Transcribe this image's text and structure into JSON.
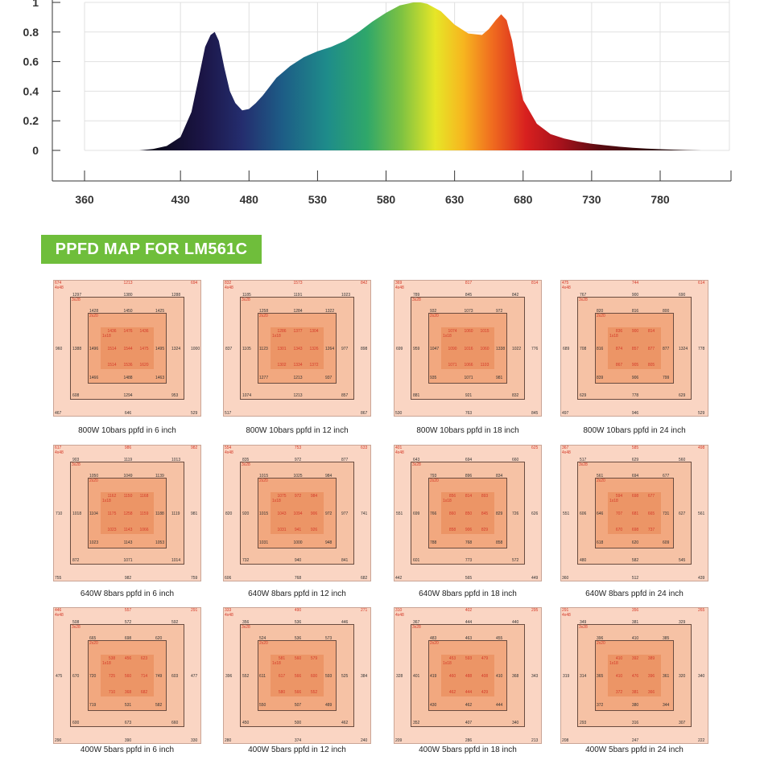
{
  "chart_data": {
    "type": "area",
    "title": "",
    "xlabel": "",
    "ylabel": "",
    "xlim": [
      350,
      815
    ],
    "ylim": [
      0,
      1
    ],
    "x_ticks": [
      360,
      430,
      480,
      530,
      580,
      630,
      680,
      730,
      780
    ],
    "y_ticks": [
      "1",
      "0.8",
      "0.6",
      "0.4",
      "0.2",
      "0"
    ],
    "grid": true,
    "spectrum_fill": "rainbow",
    "x": [
      400,
      410,
      420,
      430,
      438,
      444,
      448,
      452,
      455,
      458,
      462,
      466,
      470,
      475,
      480,
      485,
      490,
      495,
      500,
      510,
      520,
      530,
      540,
      550,
      560,
      570,
      580,
      590,
      600,
      605,
      610,
      620,
      630,
      640,
      650,
      655,
      660,
      664,
      668,
      672,
      676,
      680,
      690,
      700,
      710,
      720,
      730,
      740,
      750,
      760,
      770,
      780,
      790,
      800,
      810
    ],
    "y": [
      0.0,
      0.01,
      0.03,
      0.09,
      0.26,
      0.52,
      0.7,
      0.78,
      0.8,
      0.74,
      0.56,
      0.4,
      0.32,
      0.27,
      0.28,
      0.32,
      0.37,
      0.43,
      0.49,
      0.57,
      0.63,
      0.67,
      0.7,
      0.74,
      0.8,
      0.87,
      0.93,
      0.98,
      1.0,
      1.0,
      0.99,
      0.94,
      0.85,
      0.79,
      0.78,
      0.82,
      0.88,
      0.92,
      0.88,
      0.74,
      0.52,
      0.34,
      0.18,
      0.11,
      0.08,
      0.06,
      0.045,
      0.035,
      0.025,
      0.018,
      0.012,
      0.008,
      0.005,
      0.002,
      0.0
    ]
  },
  "banner": {
    "text": "PPFD MAP FOR LM561C"
  },
  "maps": [
    {
      "caption": "800W 10bars ppfd in 6 inch",
      "corners": [
        "674",
        "1213",
        "694",
        "467",
        "646",
        "529"
      ],
      "mid_corners": [
        "1297",
        "1380",
        "1288",
        "608",
        "1294",
        "953"
      ],
      "inner_corners": [
        "1428",
        "1450",
        "1425",
        "1466",
        "1488",
        "1463"
      ],
      "core": [
        "1436",
        "1476",
        "1436",
        "1514",
        "1544",
        "1475",
        "1514",
        "1536",
        "1620"
      ],
      "left": [
        "960",
        "1388",
        "1496"
      ],
      "right": [
        "1495",
        "1324",
        "1000"
      ],
      "labels": [
        "4x48",
        "3x28",
        "2x20",
        "1x18"
      ]
    },
    {
      "caption": "800W 10bars ppfd in 12 inch",
      "corners": [
        "832",
        "1573",
        "842",
        "517",
        "",
        "867"
      ],
      "mid_corners": [
        "1185",
        "1191",
        "1023",
        "1074",
        "1213",
        "857"
      ],
      "inner_corners": [
        "1258",
        "1284",
        "1322",
        "1277",
        "1213",
        "937"
      ],
      "core": [
        "1286",
        "1377",
        "1304",
        "1301",
        "1343",
        "1326",
        "1302",
        "1334",
        "1372"
      ],
      "left": [
        "837",
        "1105",
        "1123"
      ],
      "right": [
        "1264",
        "977",
        "898"
      ],
      "labels": [
        "4x48",
        "3x28",
        "2x20",
        "1x18"
      ]
    },
    {
      "caption": "800W 10bars ppfd in 18 inch",
      "corners": [
        "369",
        "817",
        "814",
        "530",
        "763",
        "845"
      ],
      "mid_corners": [
        "789",
        "845",
        "842",
        "881",
        "921",
        "832"
      ],
      "inner_corners": [
        "932",
        "1073",
        "972",
        "935",
        "1071",
        "981"
      ],
      "core": [
        "1074",
        "1060",
        "1015",
        "1090",
        "1016",
        "1060",
        "1071",
        "1066",
        "1103"
      ],
      "left": [
        "699",
        "959",
        "1047"
      ],
      "right": [
        "1338",
        "1022",
        "776"
      ],
      "labels": [
        "4x48",
        "3x28",
        "2x20",
        "1x18"
      ]
    },
    {
      "caption": "800W 10bars ppfd in 24 inch",
      "corners": [
        "475",
        "744",
        "614",
        "497",
        "946",
        "529"
      ],
      "mid_corners": [
        "767",
        "900",
        "690",
        "629",
        "778",
        "629"
      ],
      "inner_corners": [
        "820",
        "816",
        "800",
        "839",
        "906",
        "799"
      ],
      "core": [
        "836",
        "900",
        "814",
        "874",
        "857",
        "877",
        "867",
        "905",
        "805"
      ],
      "left": [
        "689",
        "708",
        "816"
      ],
      "right": [
        "877",
        "1324",
        "778"
      ],
      "labels": [
        "4x48",
        "3x28",
        "2x20",
        "1x18"
      ]
    },
    {
      "caption": "640W 8bars ppfd in 6 inch",
      "corners": [
        "617",
        "986",
        "982",
        "755",
        "982",
        "759"
      ],
      "mid_corners": [
        "903",
        "1119",
        "1013",
        "872",
        "1071",
        "1014"
      ],
      "inner_corners": [
        "1050",
        "1049",
        "1139",
        "1023",
        "1143",
        "1053"
      ],
      "core": [
        "1162",
        "1150",
        "1168",
        "1175",
        "1258",
        "1159",
        "1023",
        "1143",
        "1066"
      ],
      "left": [
        "710",
        "1018",
        "1104"
      ],
      "right": [
        "1188",
        "1119",
        "981"
      ],
      "labels": [
        "4x48",
        "3x28",
        "2x20",
        "1x18"
      ]
    },
    {
      "caption": "640W 8bars ppfd in 12 inch",
      "corners": [
        "554",
        "753",
        "633",
        "606",
        "768",
        "682"
      ],
      "mid_corners": [
        "835",
        "972",
        "877",
        "732",
        "940",
        "841"
      ],
      "inner_corners": [
        "1015",
        "1025",
        "984",
        "1031",
        "1000",
        "948"
      ],
      "core": [
        "1075",
        "972",
        "984",
        "1043",
        "1094",
        "906",
        "1031",
        "941",
        "926"
      ],
      "left": [
        "820",
        "920",
        "1015"
      ],
      "right": [
        "972",
        "977",
        "741"
      ],
      "labels": [
        "4x48",
        "3x28",
        "2x20",
        "1x18"
      ]
    },
    {
      "caption": "640W 8bars ppfd in 18 inch",
      "corners": [
        "401",
        "",
        "625",
        "442",
        "565",
        "449"
      ],
      "mid_corners": [
        "643",
        "694",
        "660",
        "601",
        "773",
        "572"
      ],
      "inner_corners": [
        "793",
        "896",
        "834",
        "788",
        "768",
        "858"
      ],
      "core": [
        "856",
        "814",
        "893",
        "860",
        "850",
        "845",
        "858",
        "906",
        "829"
      ],
      "left": [
        "551",
        "699",
        "766"
      ],
      "right": [
        "829",
        "726",
        "626"
      ],
      "labels": [
        "4x48",
        "3x28",
        "2x20",
        "1x18"
      ]
    },
    {
      "caption": "640W 8bars ppfd in 24 inch",
      "corners": [
        "367",
        "585",
        "498",
        "360",
        "512",
        "439"
      ],
      "mid_corners": [
        "517",
        "629",
        "560",
        "480",
        "582",
        "545"
      ],
      "inner_corners": [
        "561",
        "694",
        "677",
        "618",
        "620",
        "609"
      ],
      "core": [
        "594",
        "698",
        "677",
        "707",
        "681",
        "665",
        "670",
        "698",
        "737"
      ],
      "left": [
        "551",
        "606",
        "646"
      ],
      "right": [
        "731",
        "627",
        "561"
      ],
      "labels": [
        "4x48",
        "3x28",
        "2x20",
        "1x18"
      ]
    },
    {
      "caption": "400W 5bars ppfd in 6 inch",
      "corners": [
        "446",
        "557",
        "291",
        "290",
        "390",
        "330"
      ],
      "mid_corners": [
        "508",
        "572",
        "592",
        "600",
        "673",
        "660"
      ],
      "inner_corners": [
        "665",
        "698",
        "620",
        "719",
        "531",
        "582"
      ],
      "core": [
        "538",
        "456",
        "623",
        "725",
        "560",
        "714",
        "710",
        "368",
        "682"
      ],
      "left": [
        "475",
        "670",
        "720"
      ],
      "right": [
        "749",
        "603",
        "477"
      ],
      "labels": [
        "4x48",
        "3x28",
        "2x20",
        "1x18"
      ]
    },
    {
      "caption": "400W 5bars ppfd in 12 inch",
      "corners": [
        "333",
        "490",
        "271",
        "280",
        "374",
        "240"
      ],
      "mid_corners": [
        "356",
        "536",
        "446",
        "450",
        "500",
        "462"
      ],
      "inner_corners": [
        "524",
        "536",
        "573",
        "550",
        "507",
        "489"
      ],
      "core": [
        "581",
        "560",
        "579",
        "617",
        "566",
        "600",
        "580",
        "566",
        "552"
      ],
      "left": [
        "396",
        "552",
        "611"
      ],
      "right": [
        "593",
        "525",
        "384"
      ],
      "labels": [
        "4x48",
        "3x28",
        "2x20",
        "1x18"
      ]
    },
    {
      "caption": "400W 5bars ppfd in 18 inch",
      "corners": [
        "310",
        "402",
        "295",
        "209",
        "286",
        "213"
      ],
      "mid_corners": [
        "367",
        "444",
        "440",
        "352",
        "407",
        "340"
      ],
      "inner_corners": [
        "483",
        "463",
        "455",
        "430",
        "462",
        "444"
      ],
      "core": [
        "453",
        "593",
        "479",
        "460",
        "488",
        "408",
        "462",
        "444",
        "429"
      ],
      "left": [
        "328",
        "401",
        "419"
      ],
      "right": [
        "410",
        "368",
        "343"
      ],
      "labels": [
        "4x48",
        "3x28",
        "2x20",
        "1x18"
      ]
    },
    {
      "caption": "400W 5bars ppfd in 24 inch",
      "corners": [
        "291",
        "356",
        "265",
        "208",
        "247",
        "222"
      ],
      "mid_corners": [
        "349",
        "381",
        "329",
        "293",
        "316",
        "307"
      ],
      "inner_corners": [
        "396",
        "410",
        "385",
        "372",
        "380",
        "344"
      ],
      "core": [
        "410",
        "392",
        "389",
        "410",
        "476",
        "396",
        "372",
        "381",
        "366"
      ],
      "left": [
        "319",
        "314",
        "365"
      ],
      "right": [
        "361",
        "320",
        "340"
      ],
      "labels": [
        "4x48",
        "3x28",
        "2x20",
        "1x18"
      ]
    }
  ]
}
